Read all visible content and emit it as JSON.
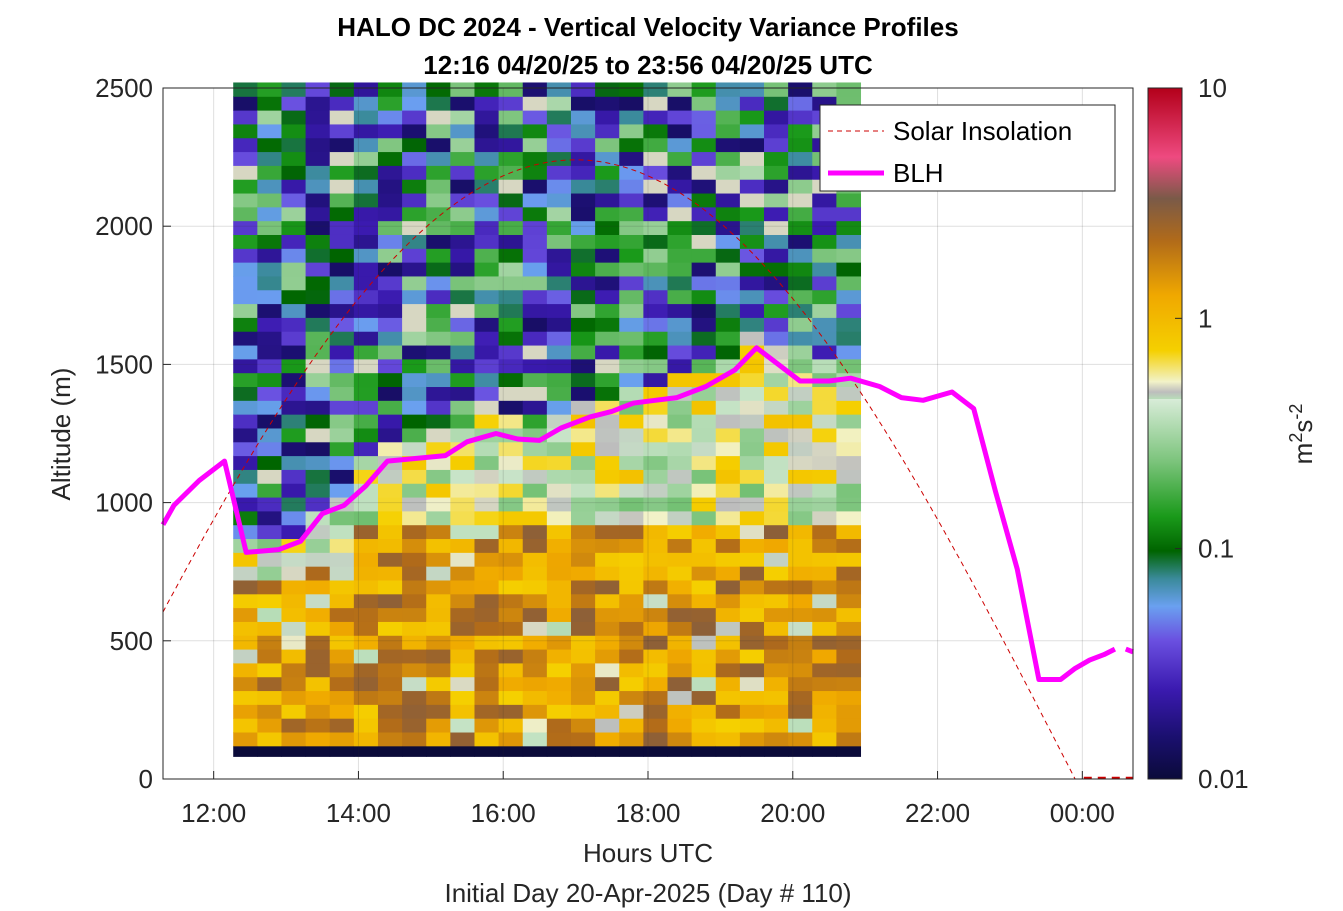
{
  "chart_data": {
    "type": "heatmap",
    "title_line1": "HALO DC 2024 - Vertical Velocity Variance Profiles",
    "title_line2": "12:16 04/20/25 to 23:56 04/20/25  UTC",
    "xlabel": "Hours UTC",
    "xlabel2": "Initial Day 20-Apr-2025 (Day # 110)",
    "ylabel": "Altitude (m)",
    "colorbar_label": "m²s⁻²",
    "colorbar_label_base": "m",
    "colorbar_label_sup1": "2",
    "colorbar_label_mid": "s",
    "colorbar_label_sup2": "-2",
    "xlim": [
      11.3,
      24.7
    ],
    "ylim": [
      0,
      2500
    ],
    "xticks": [
      12,
      14,
      16,
      18,
      20,
      22,
      24
    ],
    "xtick_labels": [
      "12:00",
      "14:00",
      "16:00",
      "18:00",
      "20:00",
      "22:00",
      "00:00"
    ],
    "yticks": [
      0,
      500,
      1000,
      1500,
      2000,
      2500
    ],
    "ytick_labels": [
      "0",
      "500",
      "1000",
      "1500",
      "2000",
      "2500"
    ],
    "clim": [
      0.01,
      10
    ],
    "colorbar_scale": "log",
    "colorbar_ticks": [
      "0.01",
      "0.1",
      "1",
      "10"
    ],
    "grid": true,
    "legend_placement": "top-right",
    "legend": [
      {
        "name": "Solar Insolation",
        "style": "dashed",
        "color": "#cc0000"
      },
      {
        "name": "BLH",
        "style": "solid",
        "color": "#ff00ff"
      }
    ],
    "heatmap": {
      "x_start": 12.27,
      "x_step": 0.3333,
      "columns": 26,
      "y_start": 120,
      "y_step": 50,
      "rows": 48,
      "lowest_row_value": 0.01,
      "cell_value_log10_description": "high near surface (~0.5-1.5 m2s-2) below ~1000 m midday, low aloft"
    },
    "blh": {
      "x": [
        11.3,
        11.45,
        11.8,
        12.15,
        12.45,
        12.9,
        13.2,
        13.5,
        13.8,
        14.1,
        14.4,
        14.8,
        15.2,
        15.5,
        15.9,
        16.2,
        16.5,
        16.8,
        17.2,
        17.5,
        17.8,
        18.1,
        18.4,
        18.8,
        19.2,
        19.5,
        19.8,
        20.1,
        20.5,
        20.8,
        21.2,
        21.5,
        21.8,
        22.2,
        22.5,
        22.8,
        23.1,
        23.4,
        23.7,
        23.9,
        24.1,
        24.3,
        24.45
      ],
      "y": [
        920,
        990,
        1080,
        1150,
        820,
        830,
        860,
        960,
        990,
        1060,
        1150,
        1160,
        1170,
        1220,
        1250,
        1230,
        1225,
        1270,
        1310,
        1330,
        1360,
        1370,
        1380,
        1420,
        1480,
        1560,
        1500,
        1440,
        1440,
        1450,
        1420,
        1380,
        1370,
        1400,
        1340,
        1040,
        760,
        360,
        360,
        400,
        430,
        450,
        470
      ]
    },
    "blh_extra": {
      "x": [
        24.6,
        24.7
      ],
      "y": [
        470,
        460
      ]
    },
    "solar_insolation": {
      "peak_x": 17.0,
      "peak_y": 2240,
      "half_width_hours": 6.9,
      "floor_start_x": 24.02
    }
  }
}
